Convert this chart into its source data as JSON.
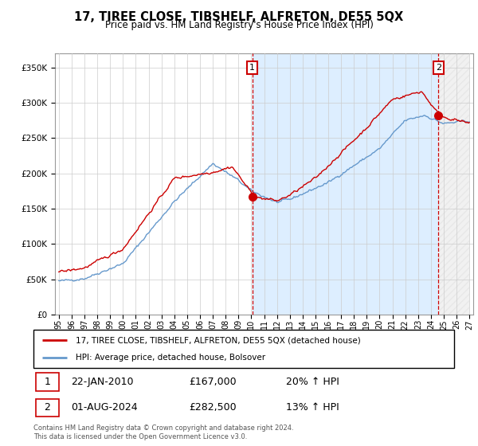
{
  "title": "17, TIREE CLOSE, TIBSHELF, ALFRETON, DE55 5QX",
  "subtitle": "Price paid vs. HM Land Registry's House Price Index (HPI)",
  "legend_line1": "17, TIREE CLOSE, TIBSHELF, ALFRETON, DE55 5QX (detached house)",
  "legend_line2": "HPI: Average price, detached house, Bolsover",
  "annotation1_date": "22-JAN-2010",
  "annotation1_price": "£167,000",
  "annotation1_hpi": "20% ↑ HPI",
  "annotation2_date": "01-AUG-2024",
  "annotation2_price": "£282,500",
  "annotation2_hpi": "13% ↑ HPI",
  "footer": "Contains HM Land Registry data © Crown copyright and database right 2024.\nThis data is licensed under the Open Government Licence v3.0.",
  "property_color": "#cc0000",
  "hpi_color": "#6699cc",
  "hpi_fill_color": "#ddeeff",
  "background_color": "#ffffff",
  "plot_bg_color": "#ffffff",
  "grid_color": "#cccccc",
  "ann1_x": 2010.07,
  "ann2_x": 2024.58,
  "ann1_y": 167000,
  "ann2_y": 282500,
  "ylim": [
    0,
    370000
  ],
  "yticks": [
    0,
    50000,
    100000,
    150000,
    200000,
    250000,
    300000,
    350000
  ],
  "xlim_start": 1994.7,
  "xlim_end": 2027.3
}
